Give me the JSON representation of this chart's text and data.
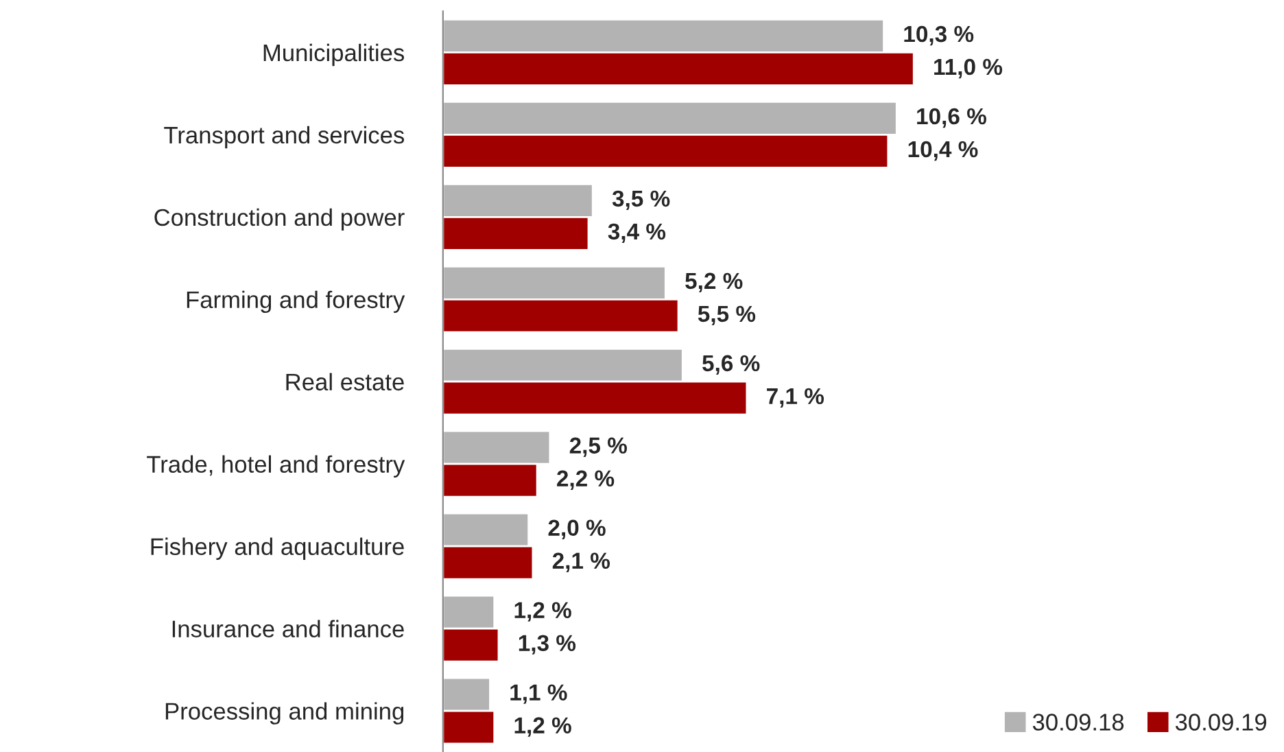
{
  "chart_data": {
    "type": "bar",
    "orientation": "horizontal",
    "categories": [
      "Municipalities",
      "Transport and services",
      "Construction and power",
      "Farming and forestry",
      "Real estate",
      "Trade, hotel and forestry",
      "Fishery and aquaculture",
      "Insurance and finance",
      "Processing and mining"
    ],
    "series": [
      {
        "name": "30.09.18",
        "color": "#b3b3b3",
        "values": [
          10.3,
          10.6,
          3.5,
          5.2,
          5.6,
          2.5,
          2.0,
          1.2,
          1.1
        ],
        "value_labels": [
          "10,3 %",
          "10,6 %",
          "3,5 %",
          "5,2 %",
          "5,6 %",
          "2,5 %",
          "2,0 %",
          "1,2 %",
          "1,1 %"
        ]
      },
      {
        "name": "30.09.19",
        "color": "#a00000",
        "values": [
          11.0,
          10.4,
          3.4,
          5.5,
          7.1,
          2.2,
          2.1,
          1.3,
          1.2
        ],
        "value_labels": [
          "11,0 %",
          "10,4 %",
          "3,4 %",
          "5,5 %",
          "7,1 %",
          "2,2 %",
          "2,1 %",
          "1,3 %",
          "1,2 %"
        ]
      }
    ],
    "tick_labels": "y",
    "grid": false,
    "legend": "bottom right"
  }
}
